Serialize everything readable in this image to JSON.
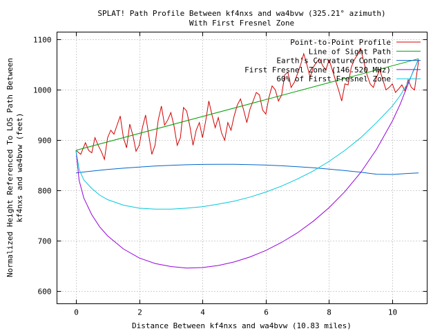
{
  "chart_data": {
    "type": "line",
    "title": "SPLAT! Path Profile Between kf4nxs and wa4bvw (325.21° azimuth)",
    "subtitle": "With First Fresnel Zone",
    "xlabel": "Distance Between kf4nxs and wa4bvw (10.83 miles)",
    "ylabel_line1": "Normalized Height Referenced To LOS Path Between",
    "ylabel_line2": "kf4nxs and wa4bvw (feet)",
    "xlim": [
      -0.6,
      11.1
    ],
    "ylim": [
      575,
      1115
    ],
    "xticks": [
      0,
      2,
      4,
      6,
      8,
      10
    ],
    "yticks": [
      600,
      700,
      800,
      900,
      1000,
      1100
    ],
    "grid": true,
    "legend_position": "top-right",
    "series": [
      {
        "name": "Point-to-Point Profile",
        "color": "#d20000",
        "x": [
          0,
          0.15,
          0.3,
          0.4,
          0.5,
          0.6,
          0.7,
          0.8,
          0.9,
          1.0,
          1.1,
          1.2,
          1.3,
          1.4,
          1.5,
          1.6,
          1.7,
          1.8,
          1.9,
          2.0,
          2.1,
          2.2,
          2.3,
          2.4,
          2.5,
          2.6,
          2.7,
          2.8,
          2.9,
          3.0,
          3.1,
          3.2,
          3.3,
          3.4,
          3.5,
          3.6,
          3.7,
          3.8,
          3.9,
          4.0,
          4.1,
          4.2,
          4.3,
          4.4,
          4.5,
          4.6,
          4.7,
          4.8,
          4.9,
          5.0,
          5.1,
          5.2,
          5.3,
          5.4,
          5.5,
          5.6,
          5.7,
          5.8,
          5.9,
          6.0,
          6.1,
          6.2,
          6.3,
          6.4,
          6.5,
          6.6,
          6.7,
          6.8,
          6.9,
          7.0,
          7.1,
          7.2,
          7.3,
          7.4,
          7.5,
          7.6,
          7.7,
          7.8,
          7.9,
          8.0,
          8.1,
          8.2,
          8.3,
          8.4,
          8.5,
          8.6,
          8.7,
          8.8,
          8.9,
          9.0,
          9.1,
          9.2,
          9.3,
          9.4,
          9.5,
          9.6,
          9.7,
          9.8,
          9.9,
          10.0,
          10.1,
          10.2,
          10.3,
          10.4,
          10.5,
          10.6,
          10.7,
          10.83
        ],
        "y": [
          880,
          872,
          895,
          880,
          875,
          905,
          890,
          878,
          862,
          905,
          920,
          912,
          930,
          948,
          905,
          885,
          932,
          910,
          878,
          890,
          925,
          950,
          910,
          872,
          890,
          940,
          968,
          930,
          940,
          955,
          928,
          890,
          905,
          965,
          958,
          928,
          890,
          920,
          935,
          905,
          938,
          978,
          950,
          925,
          945,
          915,
          900,
          935,
          920,
          948,
          970,
          982,
          960,
          935,
          962,
          978,
          995,
          990,
          960,
          952,
          985,
          1008,
          1000,
          978,
          990,
          1030,
          1035,
          1005,
          1015,
          1032,
          1050,
          1072,
          1050,
          1025,
          1045,
          1055,
          1062,
          1048,
          1040,
          1060,
          1040,
          1020,
          1000,
          978,
          1012,
          1010,
          1045,
          1060,
          1070,
          1082,
          1055,
          1030,
          1012,
          1005,
          1025,
          1040,
          1020,
          1000,
          1005,
          1012,
          995,
          1002,
          1010,
          998,
          1020,
          1005,
          1000,
          1058
        ]
      },
      {
        "name": "Line of Sight Path",
        "color": "#00a000",
        "x": [
          0,
          10.83
        ],
        "y": [
          880,
          1062
        ]
      },
      {
        "name": "Earth's Curvature Contour",
        "color": "#0064c8",
        "x": [
          0,
          0.5,
          1,
          1.5,
          2,
          2.5,
          3,
          3.5,
          4,
          4.5,
          5,
          5.5,
          6,
          6.5,
          7,
          7.5,
          8,
          8.5,
          9,
          9.5,
          10,
          10.5,
          10.83
        ],
        "y": [
          835,
          838.7,
          841.8,
          844.5,
          846.8,
          848.7,
          850.2,
          851.3,
          852,
          852.2,
          852.1,
          851.6,
          850.6,
          849.2,
          847.5,
          845.3,
          842.7,
          839.7,
          836.3,
          832.5,
          832,
          834,
          835
        ]
      },
      {
        "name": "First Fresnel Zone (146.520 MHz)",
        "color": "#9600dc",
        "x": [
          0,
          0.1,
          0.25,
          0.5,
          0.75,
          1,
          1.5,
          2,
          2.5,
          3,
          3.5,
          4,
          4.5,
          5,
          5.5,
          6,
          6.5,
          7,
          7.5,
          8,
          8.5,
          9,
          9.5,
          10,
          10.25,
          10.5,
          10.65,
          10.75,
          10.83
        ],
        "y": [
          880,
          820,
          785,
          752,
          728,
          710,
          684,
          666,
          655,
          649,
          646,
          647,
          651,
          658,
          668,
          681,
          697,
          716,
          739,
          766,
          798,
          836,
          882,
          938,
          972,
          1012,
          1036,
          1050,
          1062
        ]
      },
      {
        "name": "60% of First Fresnel Zone",
        "color": "#00c8dc",
        "x": [
          0,
          0.1,
          0.25,
          0.5,
          0.75,
          1,
          1.5,
          2,
          2.5,
          3,
          3.5,
          4,
          4.5,
          5,
          5.5,
          6,
          6.5,
          7,
          7.5,
          8,
          8.5,
          9,
          9.5,
          10,
          10.25,
          10.5,
          10.65,
          10.75,
          10.83
        ],
        "y": [
          880,
          842,
          821,
          804,
          791,
          782,
          771,
          765,
          763,
          763,
          765,
          768,
          773,
          779,
          787,
          797,
          809,
          823,
          839,
          858,
          880,
          905,
          935,
          968,
          989,
          1015,
          1035,
          1050,
          1062
        ]
      }
    ]
  }
}
